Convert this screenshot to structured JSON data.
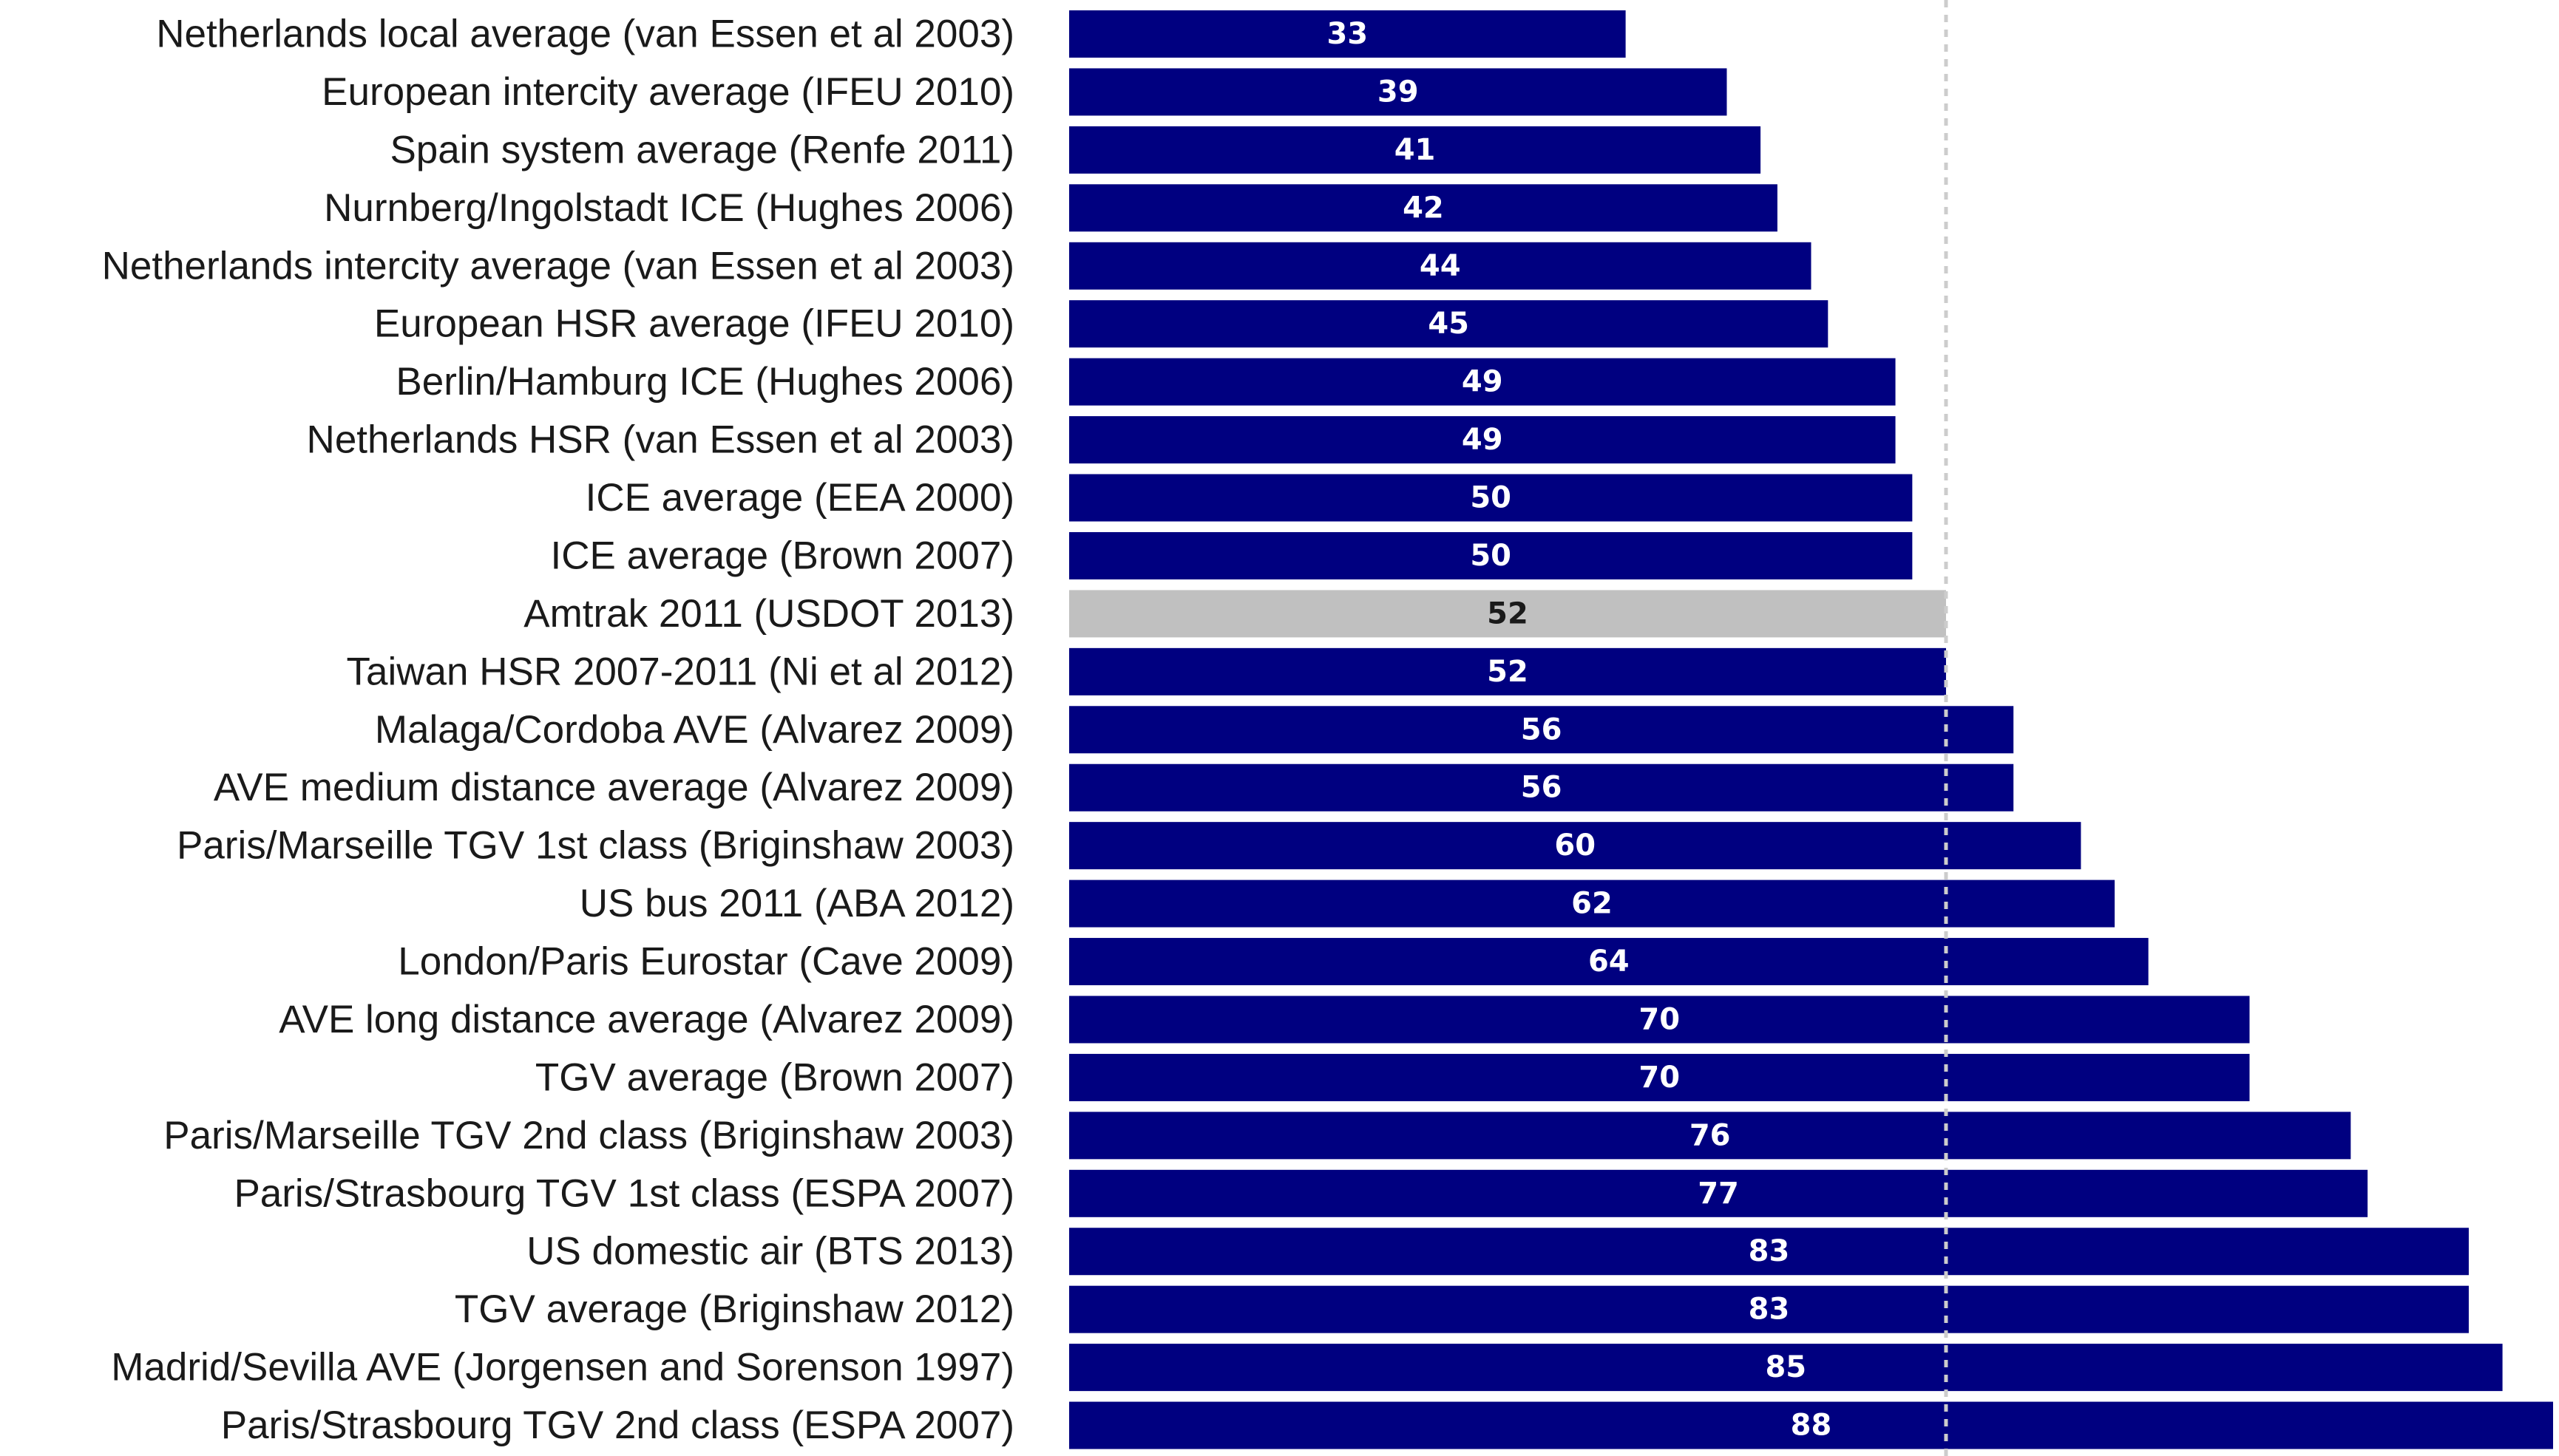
{
  "chart_data": {
    "type": "bar",
    "orientation": "horizontal",
    "title": "",
    "xlabel": "",
    "ylabel": "",
    "xlim": [
      0,
      88
    ],
    "grid": false,
    "reference_line": {
      "value": 52,
      "style": "dotted",
      "color": "#cccccc"
    },
    "colors": {
      "default_bar": "#000080",
      "highlight_bar": "#c0c0c0",
      "default_label": "#ffffff",
      "highlight_label": "#1a1a1a"
    },
    "categories": [
      "Netherlands local average (van Essen et al 2003)",
      "European intercity average (IFEU 2010)",
      "Spain system average (Renfe 2011)",
      "Nurnberg/Ingolstadt ICE (Hughes 2006)",
      "Netherlands intercity average (van Essen et al 2003)",
      "European HSR average (IFEU 2010)",
      "Berlin/Hamburg ICE (Hughes 2006)",
      "Netherlands HSR (van Essen et al 2003)",
      "ICE average (EEA 2000)",
      "ICE average (Brown 2007)",
      "Amtrak 2011 (USDOT 2013)",
      "Taiwan HSR 2007-2011 (Ni et al 2012)",
      "Malaga/Cordoba AVE (Alvarez 2009)",
      "AVE medium distance average (Alvarez 2009)",
      "Paris/Marseille TGV 1st class (Briginshaw 2003)",
      "US bus 2011 (ABA 2012)",
      "London/Paris Eurostar (Cave 2009)",
      "AVE long distance average (Alvarez 2009)",
      "TGV average (Brown 2007)",
      "Paris/Marseille TGV 2nd class (Briginshaw 2003)",
      "Paris/Strasbourg TGV 1st class (ESPA 2007)",
      "US domestic air (BTS 2013)",
      "TGV average (Briginshaw 2012)",
      "Madrid/Sevilla AVE (Jorgensen and Sorenson 1997)",
      "Paris/Strasbourg TGV 2nd class (ESPA 2007)"
    ],
    "values": [
      33,
      39,
      41,
      42,
      44,
      45,
      49,
      49,
      50,
      50,
      52,
      52,
      56,
      56,
      60,
      62,
      64,
      70,
      70,
      76,
      77,
      83,
      83,
      85,
      88
    ],
    "labels": [
      "33",
      "39",
      "41",
      "42",
      "44",
      "45",
      "49",
      "49",
      "50",
      "50",
      "52",
      "52",
      "56",
      "56",
      "60",
      "62",
      "64",
      "70",
      "70",
      "76",
      "77",
      "83",
      "83",
      "85",
      "88"
    ],
    "highlight": [
      false,
      false,
      false,
      false,
      false,
      false,
      false,
      false,
      false,
      false,
      true,
      false,
      false,
      false,
      false,
      false,
      false,
      false,
      false,
      false,
      false,
      false,
      false,
      false,
      false
    ]
  }
}
